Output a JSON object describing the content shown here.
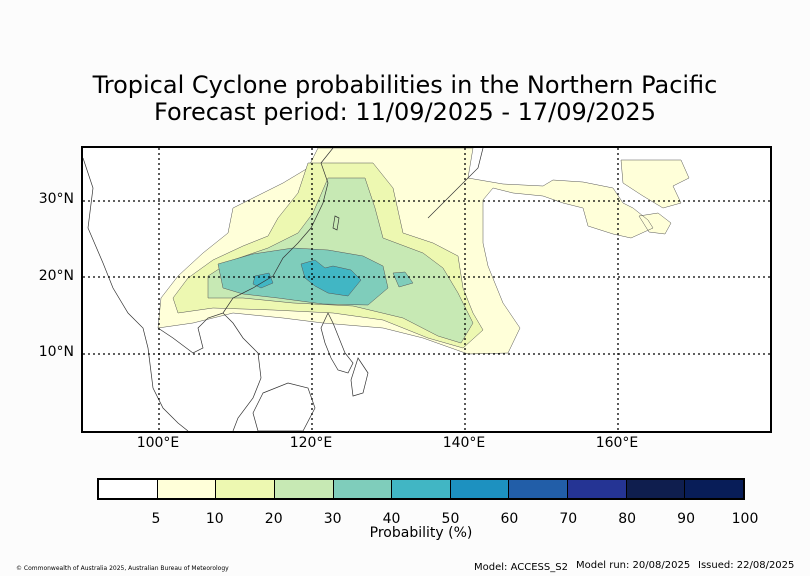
{
  "title": {
    "line1": "Tropical Cyclone probabilities in the Northern Pacific",
    "line2": "Forecast period: 11/09/2025 - 17/09/2025"
  },
  "map": {
    "lat_labels": [
      "30°N",
      "20°N",
      "10°N"
    ],
    "lon_labels": [
      "100°E",
      "120°E",
      "140°E",
      "160°E"
    ],
    "grid_lines": true
  },
  "colorbar": {
    "ticks": [
      "5",
      "10",
      "20",
      "30",
      "40",
      "50",
      "60",
      "70",
      "80",
      "90",
      "100"
    ],
    "colors": [
      "#ffffff",
      "#ffffd9",
      "#edf8b1",
      "#c7e9b4",
      "#7fcdbb",
      "#41b6c4",
      "#1d91c0",
      "#225ea8",
      "#253494",
      "#0f1e4e",
      "#081d58"
    ],
    "label": "Probability (%)"
  },
  "footer": {
    "copyright": "© Commonwealth of Australia 2025, Australian Bureau of Meteorology",
    "model": "Model: ACCESS_S2",
    "model_run": "Model run: 20/08/2025",
    "issued": "Issued: 22/08/2025"
  }
}
